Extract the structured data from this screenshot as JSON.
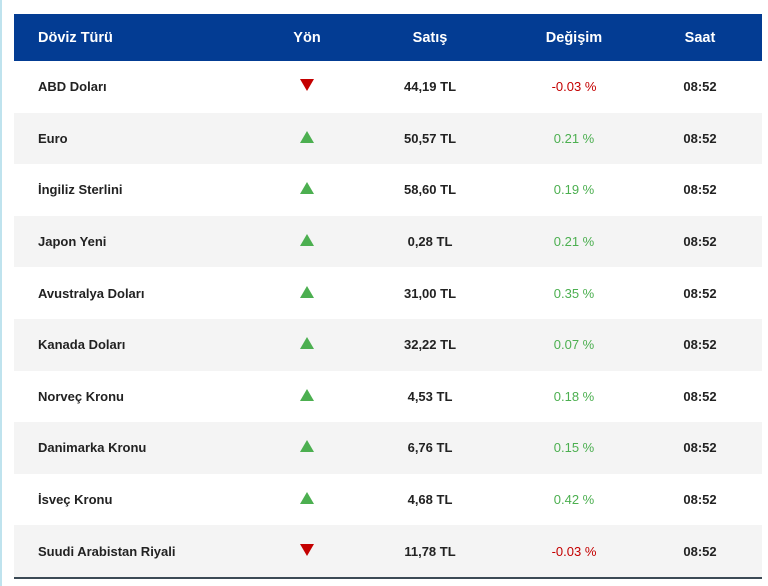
{
  "header": {
    "name": "Döviz Türü",
    "direction": "Yön",
    "sell": "Satış",
    "change": "Değişim",
    "time": "Saat"
  },
  "colors": {
    "header_bg": "#033c93",
    "up": "#4caf50",
    "down": "#c40000"
  },
  "rows": [
    {
      "name": "ABD Doları",
      "direction": "down",
      "sell": "44,19 TL",
      "change": "-0.03 %",
      "time": "08:52"
    },
    {
      "name": "Euro",
      "direction": "up",
      "sell": "50,57 TL",
      "change": "0.21 %",
      "time": "08:52"
    },
    {
      "name": "İngiliz Sterlini",
      "direction": "up",
      "sell": "58,60 TL",
      "change": "0.19 %",
      "time": "08:52"
    },
    {
      "name": "Japon Yeni",
      "direction": "up",
      "sell": "0,28 TL",
      "change": "0.21 %",
      "time": "08:52"
    },
    {
      "name": "Avustralya Doları",
      "direction": "up",
      "sell": "31,00 TL",
      "change": "0.35 %",
      "time": "08:52"
    },
    {
      "name": "Kanada Doları",
      "direction": "up",
      "sell": "32,22 TL",
      "change": "0.07 %",
      "time": "08:52"
    },
    {
      "name": "Norveç Kronu",
      "direction": "up",
      "sell": "4,53 TL",
      "change": "0.18 %",
      "time": "08:52"
    },
    {
      "name": "Danimarka Kronu",
      "direction": "up",
      "sell": "6,76 TL",
      "change": "0.15 %",
      "time": "08:52"
    },
    {
      "name": "İsveç Kronu",
      "direction": "up",
      "sell": "4,68 TL",
      "change": "0.42 %",
      "time": "08:52"
    },
    {
      "name": "Suudi Arabistan Riyali",
      "direction": "down",
      "sell": "11,78 TL",
      "change": "-0.03 %",
      "time": "08:52"
    }
  ]
}
